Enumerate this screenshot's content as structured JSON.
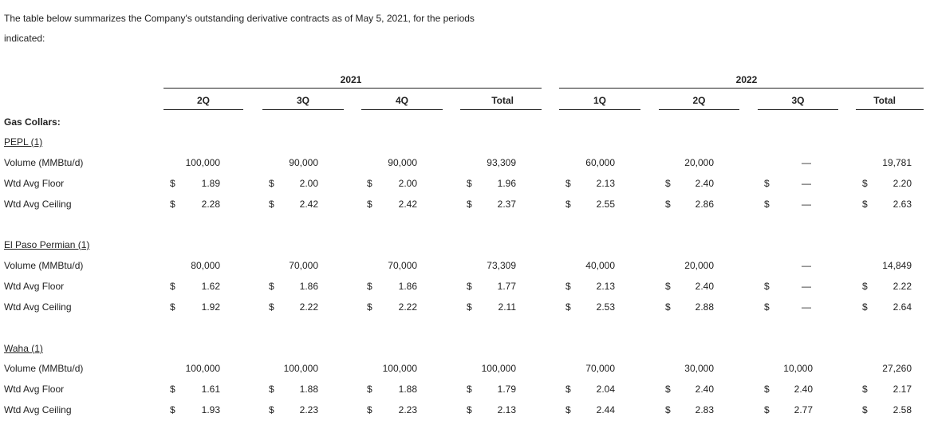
{
  "intro": {
    "line1": "The table below summarizes the Company's outstanding derivative contracts as of May 5, 2021, for the periods",
    "line2": "indicated:"
  },
  "years": [
    "2021",
    "2022"
  ],
  "columns": [
    "2Q",
    "3Q",
    "4Q",
    "Total",
    "1Q",
    "2Q",
    "3Q",
    "Total"
  ],
  "section_title": "Gas Collars:",
  "row_labels": [
    "Volume (MMBtu/d)",
    "Wtd Avg Floor",
    "Wtd Avg Ceiling"
  ],
  "currency_symbol": "$",
  "dash": "—",
  "groups": [
    {
      "title": "PEPL (1)",
      "volume": [
        "100,000",
        "90,000",
        "90,000",
        "93,309",
        "60,000",
        "20,000",
        "—",
        "19,781"
      ],
      "floor": [
        "1.89",
        "2.00",
        "2.00",
        "1.96",
        "2.13",
        "2.40",
        "—",
        "2.20"
      ],
      "ceiling": [
        "2.28",
        "2.42",
        "2.42",
        "2.37",
        "2.55",
        "2.86",
        "—",
        "2.63"
      ]
    },
    {
      "title": "El Paso Permian (1)",
      "volume": [
        "80,000",
        "70,000",
        "70,000",
        "73,309",
        "40,000",
        "20,000",
        "—",
        "14,849"
      ],
      "floor": [
        "1.62",
        "1.86",
        "1.86",
        "1.77",
        "2.13",
        "2.40",
        "—",
        "2.22"
      ],
      "ceiling": [
        "1.92",
        "2.22",
        "2.22",
        "2.11",
        "2.53",
        "2.88",
        "—",
        "2.64"
      ]
    },
    {
      "title": "Waha (1)",
      "volume": [
        "100,000",
        "100,000",
        "100,000",
        "100,000",
        "70,000",
        "30,000",
        "10,000",
        "27,260"
      ],
      "floor": [
        "1.61",
        "1.88",
        "1.88",
        "1.79",
        "2.04",
        "2.40",
        "2.40",
        "2.17"
      ],
      "ceiling": [
        "1.93",
        "2.23",
        "2.23",
        "2.13",
        "2.44",
        "2.83",
        "2.77",
        "2.58"
      ]
    }
  ]
}
